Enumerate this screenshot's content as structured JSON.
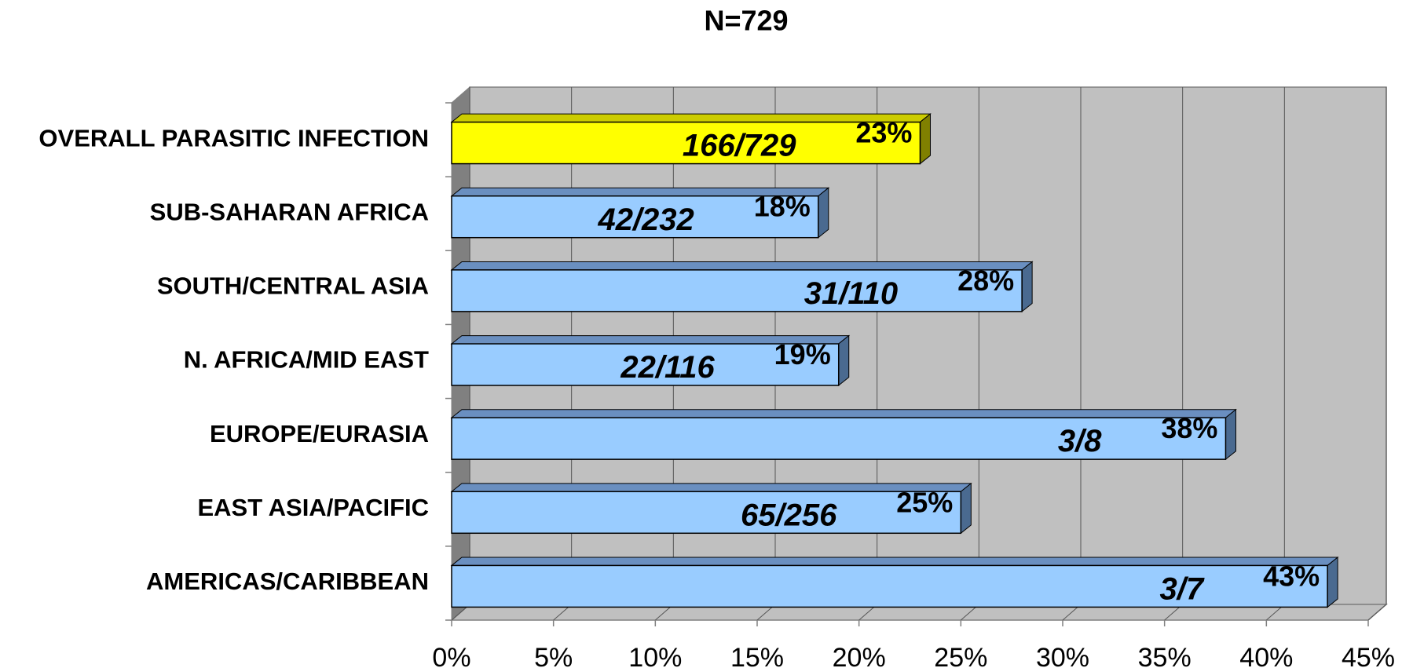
{
  "chart_data": {
    "type": "bar3d_horizontal",
    "title": "N=729",
    "categories": [
      "OVERALL PARASITIC INFECTION",
      "SUB-SAHARAN AFRICA",
      "SOUTH/CENTRAL ASIA",
      "N. AFRICA/MID EAST",
      "EUROPE/EURASIA",
      "EAST ASIA/PACIFIC",
      "AMERICAS/CARIBBEAN"
    ],
    "values": [
      23,
      18,
      28,
      19,
      38,
      25,
      43
    ],
    "value_labels": [
      "23%",
      "18%",
      "28%",
      "19%",
      "38%",
      "25%",
      "43%"
    ],
    "annotations": [
      "166/729",
      "42/232",
      "31/110",
      "22/116",
      "3/8",
      "65/256",
      "3/7"
    ],
    "colors": [
      "#ffff00",
      "#99ccff",
      "#99ccff",
      "#99ccff",
      "#99ccff",
      "#99ccff",
      "#99ccff"
    ],
    "xlim": [
      0,
      45
    ],
    "xticks": [
      {
        "value": 0,
        "label": "0%"
      },
      {
        "value": 5,
        "label": "5%"
      },
      {
        "value": 10,
        "label": "10%"
      },
      {
        "value": 15,
        "label": "15%"
      },
      {
        "value": 20,
        "label": "20%"
      },
      {
        "value": 25,
        "label": "25%"
      },
      {
        "value": 30,
        "label": "30%"
      },
      {
        "value": 35,
        "label": "35%"
      },
      {
        "value": 40,
        "label": "40%"
      },
      {
        "value": 45,
        "label": "45%"
      }
    ],
    "grid": true
  }
}
